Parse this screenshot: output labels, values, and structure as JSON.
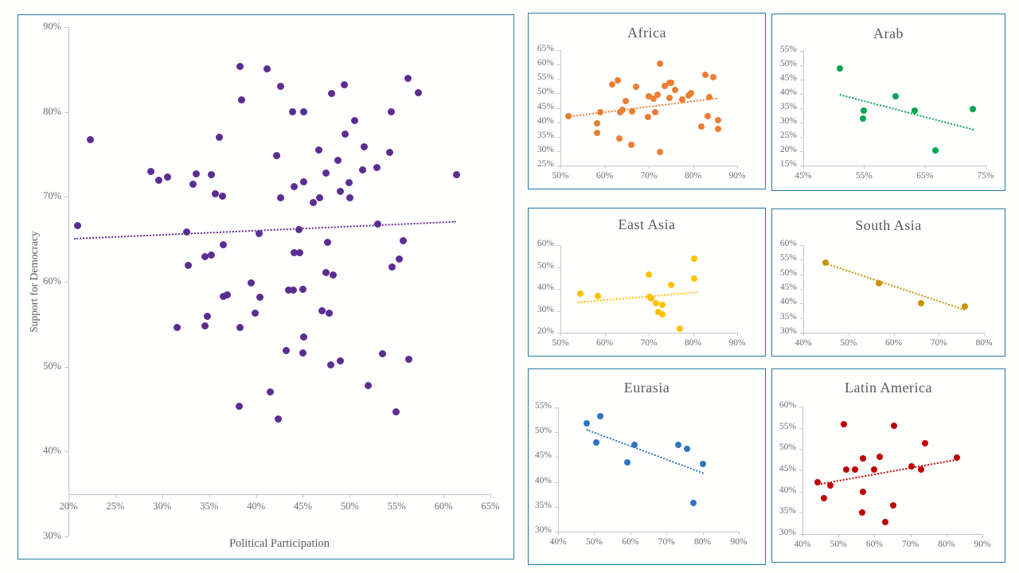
{
  "page": {
    "background": "#fdfdfc",
    "panel_border_color": "#2878A0",
    "axis_line_color": "#c6c6c6",
    "tick_text_color": "#6e6e6e",
    "title_text_color": "#595959"
  },
  "chart_data": [
    {
      "id": "main",
      "type": "scatter",
      "title": "",
      "xlabel": "Political Participation",
      "ylabel": "Support for Democracy",
      "xlim": [
        20,
        65
      ],
      "xticks": [
        20,
        25,
        30,
        35,
        40,
        45,
        50,
        55,
        60,
        65
      ],
      "ylim": [
        30,
        90
      ],
      "yticks": [
        30,
        40,
        50,
        60,
        70,
        80,
        90
      ],
      "x_axis_cross": 35,
      "tick_format": "percent",
      "grid": false,
      "legend": "none",
      "color": "#5C2D91",
      "points": [
        [
          22.3,
          76.7
        ],
        [
          21.0,
          66.6
        ],
        [
          28.8,
          73.0
        ],
        [
          29.6,
          72.0
        ],
        [
          30.6,
          72.3
        ],
        [
          31.6,
          54.6
        ],
        [
          32.6,
          65.9
        ],
        [
          32.8,
          61.9
        ],
        [
          33.6,
          72.7
        ],
        [
          33.3,
          71.5
        ],
        [
          34.6,
          63.0
        ],
        [
          35.2,
          63.1
        ],
        [
          34.8,
          55.9
        ],
        [
          34.6,
          54.8
        ],
        [
          35.2,
          72.6
        ],
        [
          35.7,
          70.4
        ],
        [
          36.1,
          77.0
        ],
        [
          36.4,
          70.1
        ],
        [
          36.5,
          64.4
        ],
        [
          36.5,
          58.3
        ],
        [
          36.9,
          58.5
        ],
        [
          38.3,
          85.4
        ],
        [
          38.5,
          81.4
        ],
        [
          38.3,
          54.6
        ],
        [
          38.2,
          45.3
        ],
        [
          39.5,
          59.9
        ],
        [
          39.9,
          56.3
        ],
        [
          40.3,
          65.7
        ],
        [
          40.4,
          58.2
        ],
        [
          41.2,
          85.1
        ],
        [
          41.5,
          47.0
        ],
        [
          42.2,
          74.9
        ],
        [
          42.4,
          43.8
        ],
        [
          42.6,
          83.0
        ],
        [
          42.6,
          69.9
        ],
        [
          43.2,
          51.9
        ],
        [
          43.5,
          59.0
        ],
        [
          43.9,
          80.0
        ],
        [
          44.0,
          59.0
        ],
        [
          44.1,
          71.2
        ],
        [
          44.1,
          63.4
        ],
        [
          44.6,
          66.1
        ],
        [
          44.7,
          63.4
        ],
        [
          45.0,
          59.1
        ],
        [
          45.0,
          51.6
        ],
        [
          45.1,
          80.0
        ],
        [
          45.1,
          71.8
        ],
        [
          45.1,
          53.5
        ],
        [
          46.1,
          69.3
        ],
        [
          46.7,
          75.5
        ],
        [
          46.8,
          69.9
        ],
        [
          47.0,
          56.6
        ],
        [
          47.5,
          72.8
        ],
        [
          47.5,
          61.1
        ],
        [
          47.6,
          64.6
        ],
        [
          47.8,
          56.3
        ],
        [
          48.0,
          50.2
        ],
        [
          48.1,
          82.2
        ],
        [
          48.2,
          60.8
        ],
        [
          48.7,
          74.3
        ],
        [
          49.0,
          70.6
        ],
        [
          49.0,
          50.7
        ],
        [
          49.4,
          83.2
        ],
        [
          49.5,
          77.4
        ],
        [
          49.9,
          71.7
        ],
        [
          50.0,
          69.9
        ],
        [
          50.5,
          79.0
        ],
        [
          51.4,
          73.2
        ],
        [
          51.5,
          75.9
        ],
        [
          52.0,
          47.8
        ],
        [
          52.9,
          73.5
        ],
        [
          53.0,
          66.8
        ],
        [
          53.5,
          51.5
        ],
        [
          54.3,
          75.2
        ],
        [
          54.4,
          80.0
        ],
        [
          54.5,
          61.7
        ],
        [
          54.9,
          44.7
        ],
        [
          55.3,
          62.7
        ],
        [
          55.7,
          64.8
        ],
        [
          56.2,
          84.0
        ],
        [
          56.3,
          50.9
        ],
        [
          57.3,
          82.3
        ],
        [
          61.4,
          72.6
        ]
      ],
      "trend": [
        [
          20.6,
          65.2
        ],
        [
          61.3,
          67.2
        ]
      ]
    },
    {
      "id": "africa",
      "type": "scatter",
      "title": "Africa",
      "xlabel": "",
      "ylabel": "",
      "xlim": [
        50,
        90
      ],
      "xticks": [
        50,
        60,
        70,
        80,
        90
      ],
      "ylim": [
        25,
        65
      ],
      "yticks": [
        25,
        30,
        35,
        40,
        45,
        50,
        55,
        60,
        65
      ],
      "tick_format": "percent",
      "grid": false,
      "color": "#ED7D31",
      "points": [
        [
          51.8,
          42.2
        ],
        [
          58.2,
          39.5
        ],
        [
          58.2,
          36.3
        ],
        [
          59.0,
          43.4
        ],
        [
          61.8,
          53.2
        ],
        [
          63.0,
          54.6
        ],
        [
          63.4,
          34.3
        ],
        [
          63.6,
          43.6
        ],
        [
          64.0,
          44.2
        ],
        [
          64.8,
          47.4
        ],
        [
          66.0,
          32.1
        ],
        [
          66.3,
          43.8
        ],
        [
          67.1,
          52.3
        ],
        [
          69.8,
          41.9
        ],
        [
          70.0,
          49.0
        ],
        [
          71.0,
          48.3
        ],
        [
          71.5,
          43.4
        ],
        [
          71.9,
          49.6
        ],
        [
          72.6,
          60.4
        ],
        [
          72.6,
          29.8
        ],
        [
          73.6,
          52.5
        ],
        [
          74.7,
          53.8
        ],
        [
          75.1,
          53.8
        ],
        [
          74.7,
          48.4
        ],
        [
          75.9,
          51.1
        ],
        [
          77.5,
          48.0
        ],
        [
          79.0,
          49.3
        ],
        [
          79.6,
          50.2
        ],
        [
          81.9,
          38.4
        ],
        [
          82.8,
          56.4
        ],
        [
          83.3,
          42.1
        ],
        [
          83.7,
          48.7
        ],
        [
          84.6,
          55.5
        ],
        [
          85.6,
          40.6
        ],
        [
          85.7,
          37.8
        ]
      ],
      "trend": [
        [
          51.3,
          42.0
        ],
        [
          85.5,
          48.5
        ]
      ]
    },
    {
      "id": "arab",
      "type": "scatter",
      "title": "Arab",
      "xlabel": "",
      "ylabel": "",
      "xlim": [
        45,
        75
      ],
      "xticks": [
        45,
        55,
        65,
        75
      ],
      "ylim": [
        15,
        55
      ],
      "yticks": [
        15,
        20,
        25,
        30,
        35,
        40,
        45,
        50,
        55
      ],
      "tick_format": "percent",
      "grid": false,
      "color": "#00A550",
      "points": [
        [
          51.0,
          48.8
        ],
        [
          55.0,
          34.2
        ],
        [
          54.8,
          31.4
        ],
        [
          60.2,
          39.1
        ],
        [
          63.3,
          34.1
        ],
        [
          66.8,
          20.4
        ],
        [
          72.9,
          34.7
        ]
      ],
      "trend": [
        [
          51.0,
          40.0
        ],
        [
          73.0,
          27.8
        ]
      ]
    },
    {
      "id": "east_asia",
      "type": "scatter",
      "title": "East Asia",
      "xlabel": "",
      "ylabel": "",
      "xlim": [
        50,
        90
      ],
      "xticks": [
        50,
        60,
        70,
        80,
        90
      ],
      "ylim": [
        20,
        60
      ],
      "yticks": [
        20,
        30,
        40,
        50,
        60
      ],
      "tick_format": "percent",
      "grid": false,
      "color": "#FFC000",
      "points": [
        [
          54.5,
          38.0
        ],
        [
          58.5,
          36.8
        ],
        [
          70.0,
          46.4
        ],
        [
          70.1,
          36.3
        ],
        [
          70.6,
          35.5
        ],
        [
          71.6,
          33.3
        ],
        [
          72.1,
          29.3
        ],
        [
          73.0,
          32.9
        ],
        [
          73.1,
          28.4
        ],
        [
          75.0,
          41.7
        ],
        [
          77.1,
          21.8
        ],
        [
          80.3,
          53.9
        ],
        [
          80.3,
          44.9
        ]
      ],
      "trend": [
        [
          54.0,
          34.2
        ],
        [
          81.0,
          38.8
        ]
      ]
    },
    {
      "id": "south_asia",
      "type": "scatter",
      "title": "South Asia",
      "xlabel": "",
      "ylabel": "",
      "xlim": [
        40,
        80
      ],
      "xticks": [
        40,
        50,
        60,
        70,
        80
      ],
      "ylim": [
        30,
        60
      ],
      "yticks": [
        30,
        35,
        40,
        45,
        50,
        55,
        60
      ],
      "tick_format": "percent",
      "grid": false,
      "color": "#C49500",
      "points": [
        [
          45.0,
          54.1
        ],
        [
          56.8,
          47.0
        ],
        [
          66.0,
          40.0
        ],
        [
          75.7,
          39.0
        ]
      ],
      "trend": [
        [
          45.0,
          54.0
        ],
        [
          76.0,
          38.0
        ]
      ]
    },
    {
      "id": "eurasia",
      "type": "scatter",
      "title": "Eurasia",
      "xlabel": "",
      "ylabel": "",
      "xlim": [
        40,
        90
      ],
      "xticks": [
        40,
        50,
        60,
        70,
        80,
        90
      ],
      "ylim": [
        30,
        55
      ],
      "yticks": [
        30,
        35,
        40,
        45,
        50,
        55
      ],
      "tick_format": "percent",
      "grid": false,
      "color": "#2E75C0",
      "points": [
        [
          47.9,
          51.8
        ],
        [
          51.6,
          53.2
        ],
        [
          50.5,
          47.9
        ],
        [
          59.1,
          43.9
        ],
        [
          61.2,
          47.4
        ],
        [
          73.2,
          47.4
        ],
        [
          75.6,
          46.6
        ],
        [
          77.4,
          35.8
        ],
        [
          80.1,
          43.7
        ]
      ],
      "trend": [
        [
          48.0,
          50.7
        ],
        [
          80.5,
          41.9
        ]
      ]
    },
    {
      "id": "latin_america",
      "type": "scatter",
      "title": "Latin America",
      "xlabel": "",
      "ylabel": "",
      "xlim": [
        40,
        90
      ],
      "xticks": [
        40,
        50,
        60,
        70,
        80,
        90
      ],
      "ylim": [
        30,
        60
      ],
      "yticks": [
        30,
        35,
        40,
        45,
        50,
        55,
        60
      ],
      "tick_format": "percent",
      "grid": false,
      "color": "#C00000",
      "points": [
        [
          44.3,
          42.2
        ],
        [
          46.0,
          38.4
        ],
        [
          47.7,
          41.5
        ],
        [
          51.6,
          55.9
        ],
        [
          52.2,
          45.1
        ],
        [
          54.6,
          45.2
        ],
        [
          56.8,
          47.8
        ],
        [
          56.9,
          40.0
        ],
        [
          56.7,
          35.1
        ],
        [
          59.9,
          45.2
        ],
        [
          61.5,
          48.1
        ],
        [
          62.9,
          32.9
        ],
        [
          65.4,
          55.5
        ],
        [
          65.3,
          36.7
        ],
        [
          70.3,
          45.9
        ],
        [
          72.9,
          45.1
        ],
        [
          74.0,
          51.3
        ],
        [
          83.0,
          48.0
        ]
      ],
      "trend": [
        [
          44.0,
          41.9
        ],
        [
          83.0,
          47.8
        ]
      ]
    }
  ]
}
